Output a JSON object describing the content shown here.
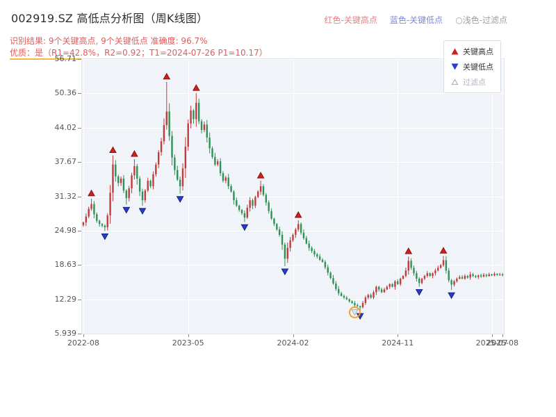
{
  "header": {
    "title": "002919.SZ 高低点分析图（周K线图）",
    "legend": [
      {
        "label": "红色-关键高点",
        "color": "#e48383"
      },
      {
        "label": "蓝色-关键低点",
        "color": "#8089d8"
      },
      {
        "label": "○浅色-过滤点",
        "color": "#9aa0a6"
      }
    ],
    "result_line": "识别结果: 9个关键高点, 9个关键低点  准确度: 96.7%",
    "quality_line": "优质：是（R1=42.8%，R2=0.92；T1=2024-07-26 P1=10.17）",
    "accent_color": "#e05c5c",
    "underline_color": "#f3b83f"
  },
  "chart_legend": {
    "items": [
      {
        "label": "关键高点",
        "marker": "up-triangle-icon",
        "color": "#cf1f1f"
      },
      {
        "label": "关键低点",
        "marker": "down-triangle-icon",
        "color": "#2a3bd0"
      },
      {
        "label": "过滤点",
        "marker": "hollow-triangle-icon",
        "color": "#aab4c4"
      }
    ]
  },
  "chart_data": {
    "type": "candlestick",
    "title": "002919.SZ 高低点分析图（周K线图）",
    "interval": "weekly",
    "start_date": "2022-08-05",
    "xlabel": "",
    "ylabel": "",
    "ylim": [
      5.939,
      56.71
    ],
    "y_ticks": [
      5.939,
      12.29,
      18.63,
      24.98,
      31.32,
      37.67,
      44.02,
      50.36,
      56.71
    ],
    "x_ticks": [
      {
        "index": 0,
        "label": "2022-08"
      },
      {
        "index": 39,
        "label": "2023-05"
      },
      {
        "index": 78,
        "label": "2024-02"
      },
      {
        "index": 117,
        "label": "2024-11"
      },
      {
        "index": 152,
        "label": "2025-07"
      },
      {
        "index": 156,
        "label": "2025-08"
      }
    ],
    "grid": true,
    "legend_position": "upper right",
    "plot_bg": "#f0f3f8",
    "grid_color": "#ffffff",
    "up_color": "#c23b3b",
    "down_color": "#2f9155",
    "marker_high_color": "#cf1f1f",
    "marker_low_color": "#2a3bd0",
    "filter_marker_fill": "#dfe7f4",
    "filter_marker_stroke": "#9fb0cc",
    "highlight_ring_color": "#f59f2e",
    "open_first": 26.0,
    "closes": [
      26.5,
      27.6,
      29.0,
      29.9,
      28.0,
      26.8,
      26.2,
      25.9,
      25.6,
      27.8,
      32.0,
      37.2,
      35.0,
      33.8,
      34.6,
      32.4,
      31.0,
      32.8,
      35.2,
      36.9,
      34.6,
      32.2,
      30.6,
      32.4,
      34.2,
      33.2,
      35.4,
      37.2,
      39.5,
      41.5,
      44.5,
      47.0,
      42.5,
      38.5,
      36.2,
      34.4,
      33.2,
      36.5,
      40.5,
      44.8,
      47.2,
      45.6,
      48.6,
      45.2,
      43.6,
      44.6,
      42.2,
      40.2,
      38.6,
      37.2,
      37.8,
      35.6,
      34.2,
      34.8,
      33.2,
      32.2,
      30.6,
      29.6,
      28.8,
      28.2,
      27.4,
      29.2,
      30.6,
      29.6,
      31.2,
      32.2,
      33.2,
      31.6,
      30.2,
      28.6,
      27.2,
      26.2,
      25.2,
      24.2,
      22.4,
      19.8,
      21.8,
      23.2,
      24.2,
      25.2,
      26.2,
      24.6,
      23.6,
      22.6,
      21.8,
      21.2,
      20.6,
      20.2,
      19.6,
      19.2,
      18.2,
      17.2,
      16.2,
      15.2,
      14.2,
      13.4,
      12.9,
      12.6,
      12.3,
      11.9,
      11.6,
      11.2,
      11.0,
      10.8,
      11.6,
      12.6,
      13.1,
      12.6,
      13.6,
      14.6,
      14.1,
      13.6,
      14.1,
      14.6,
      15.1,
      14.6,
      15.6,
      15.1,
      16.1,
      16.6,
      17.6,
      19.4,
      18.1,
      17.1,
      16.1,
      15.3,
      16.1,
      16.6,
      17.1,
      16.6,
      17.1,
      17.6,
      18.1,
      18.6,
      19.5,
      17.6,
      15.8,
      15.0,
      15.6,
      16.1,
      16.4,
      16.1,
      16.6,
      16.3,
      16.9,
      16.6,
      16.4,
      16.7,
      16.5,
      16.8,
      16.6,
      16.9,
      16.7,
      17.0,
      16.8,
      16.9,
      16.7
    ],
    "key_high_points": [
      {
        "index": 3,
        "price": 30.9
      },
      {
        "index": 11,
        "price": 38.9
      },
      {
        "index": 19,
        "price": 38.2
      },
      {
        "index": 31,
        "price": 52.5
      },
      {
        "index": 42,
        "price": 50.4
      },
      {
        "index": 66,
        "price": 34.2
      },
      {
        "index": 80,
        "price": 26.9
      },
      {
        "index": 121,
        "price": 20.2
      },
      {
        "index": 134,
        "price": 20.3
      }
    ],
    "key_low_points": [
      {
        "index": 8,
        "price": 24.9
      },
      {
        "index": 16,
        "price": 29.8
      },
      {
        "index": 22,
        "price": 29.6
      },
      {
        "index": 36,
        "price": 31.8
      },
      {
        "index": 60,
        "price": 26.6
      },
      {
        "index": 75,
        "price": 18.4
      },
      {
        "index": 103,
        "price": 10.17
      },
      {
        "index": 125,
        "price": 14.6
      },
      {
        "index": 137,
        "price": 14.0
      }
    ],
    "filter_points": [
      {
        "index": 101,
        "price": 10.9,
        "highlighted": true
      }
    ]
  }
}
